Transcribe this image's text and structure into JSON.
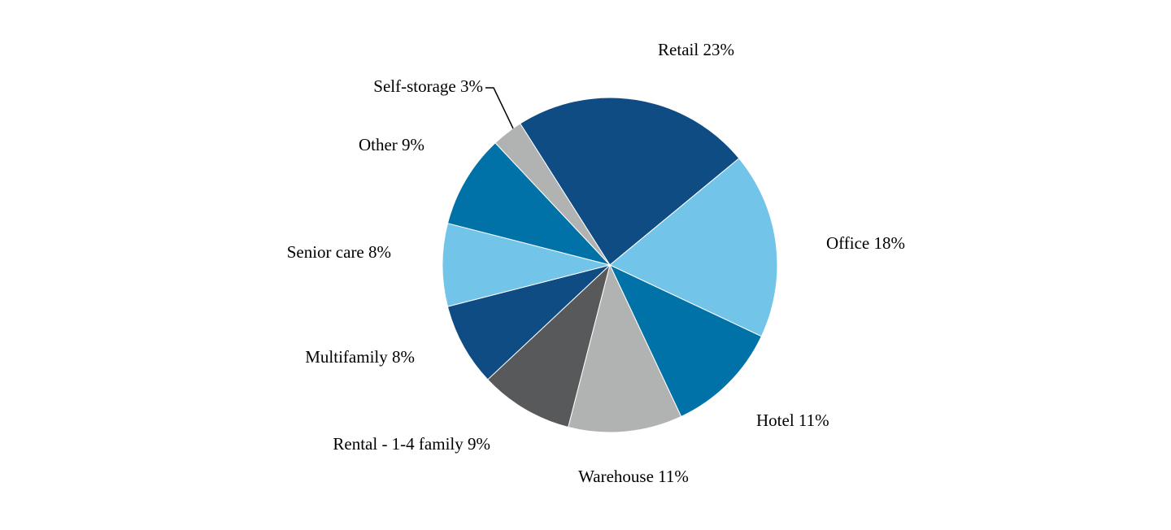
{
  "chart_data": {
    "type": "pie",
    "title": "",
    "start": "12 o'clock, clockwise",
    "slices": [
      {
        "label": "Retail 23%",
        "name": "Retail",
        "value": 23,
        "color": "#0e4c83"
      },
      {
        "label": "Office 18%",
        "name": "Office",
        "value": 18,
        "color": "#72c4e8"
      },
      {
        "label": "Hotel 11%",
        "name": "Hotel",
        "value": 11,
        "color": "#0072a7"
      },
      {
        "label": "Warehouse 11%",
        "name": "Warehouse",
        "value": 11,
        "color": "#b1b3b3"
      },
      {
        "label": "Rental - 1-4 family 9%",
        "name": "Rental - 1-4 family",
        "value": 9,
        "color": "#58595b"
      },
      {
        "label": "Multifamily 8%",
        "name": "Multifamily",
        "value": 8,
        "color": "#0e4c83"
      },
      {
        "label": "Senior care 8%",
        "name": "Senior care",
        "value": 8,
        "color": "#72c4e8"
      },
      {
        "label": "Other 9%",
        "name": "Other",
        "value": 9,
        "color": "#0072a7"
      },
      {
        "label": "Self-storage 3%",
        "name": "Self-storage",
        "value": 3,
        "color": "#b1b3b3"
      }
    ]
  }
}
